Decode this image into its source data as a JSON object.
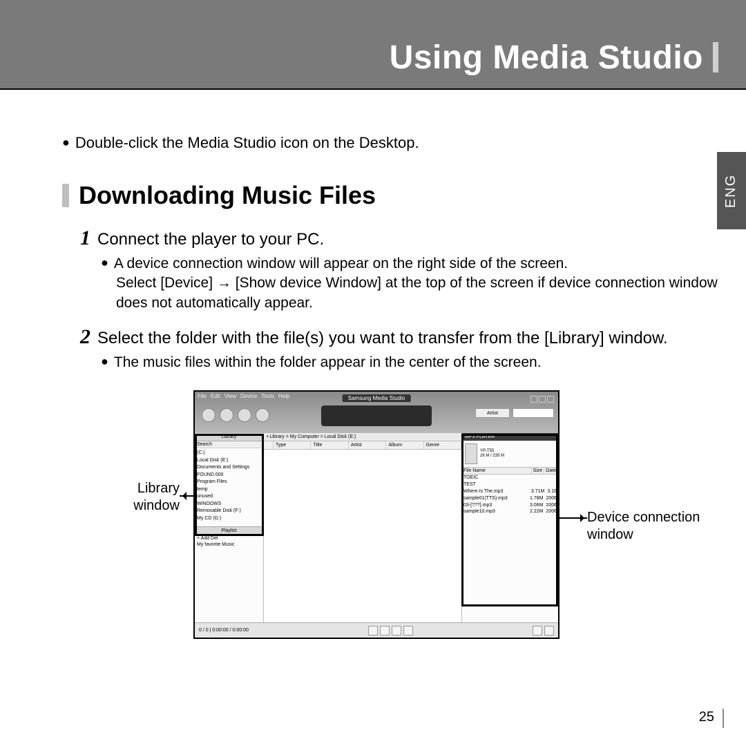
{
  "header": {
    "title": "Using Media Studio"
  },
  "lang_tab": "ENG",
  "intro_bullet": "Double-click the Media Studio icon on the Desktop.",
  "section": {
    "title": "Downloading Music Files",
    "steps": [
      {
        "num": "1",
        "text": "Connect the player to your PC.",
        "subs": [
          "A device connection window will appear on the right side of the screen.",
          "Select [Device] → [Show device Window] at the top of the screen if device connection window does not automatically appear."
        ]
      },
      {
        "num": "2",
        "text": "Select the folder with the file(s) you want to transfer from the [Library] window.",
        "subs": [
          "The music files within the folder appear in the center of the screen."
        ]
      }
    ]
  },
  "screenshot": {
    "app_title": "Samsung Media Studio",
    "menubar": [
      "File",
      "Edit",
      "View",
      "Device",
      "Tools",
      "Help"
    ],
    "search_dropdown": "Artist",
    "library": {
      "header": "Library",
      "search_label": "Search",
      "tree": [
        "(C:)",
        "Local Disk (E:)",
        "Documents and Settings",
        "FOUND.000",
        "Program Files",
        "temp",
        "unused",
        "WINDOWS",
        "Removable Disk (F:)",
        "My CD (G:)"
      ],
      "playlist_header": "Playlist",
      "playlist_row": "+ Add  Del",
      "playlist_item": "My favorite Music"
    },
    "center": {
      "breadcrumb": "• Library > My Computer > Local Disk (E:)",
      "columns": [
        "",
        "Type",
        "Title",
        "Artist",
        "Album",
        "Genre"
      ]
    },
    "device": {
      "header": "MP3 PLAYER",
      "name": "YP-T55",
      "size": "26 M / 235 M",
      "file_cols": [
        "File Name",
        "Size",
        "Date"
      ],
      "rows": [
        {
          "n": "TOEIC",
          "s": "",
          "d": ""
        },
        {
          "n": "TEST",
          "s": "",
          "d": ""
        },
        {
          "n": "Where Is The.mp3",
          "s": "3.71M",
          "d": "3.16"
        },
        {
          "n": "sample01(TTS).mp3",
          "s": "1.78M",
          "d": "2006"
        },
        {
          "n": "03-[???].mp3",
          "s": "3.06M",
          "d": "2006"
        },
        {
          "n": "sample10.mp3",
          "s": "2.22M",
          "d": "2006"
        }
      ]
    },
    "footer_left": "0 / 0   |   0:00:00 / 0:00:00"
  },
  "callouts": {
    "left": "Library window",
    "right": "Device connection window"
  },
  "page_number": "25"
}
